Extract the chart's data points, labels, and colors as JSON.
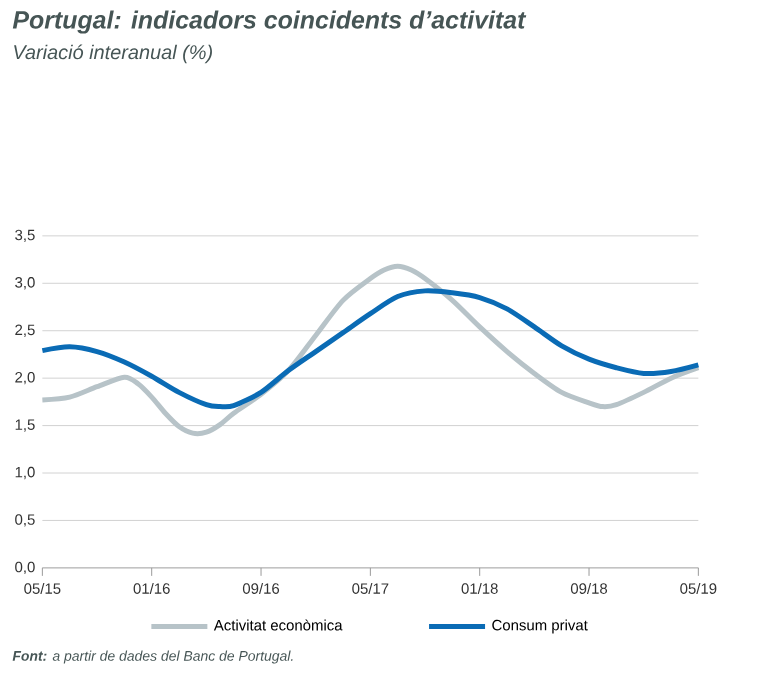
{
  "chart_data": {
    "type": "line",
    "title": "Portugal: indicadors coincidents d’activitat",
    "subtitle": "Variació interanual (%)",
    "annotations": [
      "**Font:** a partir de dades del Banc de Portugal."
    ],
    "x": [
      "2015-05",
      "2015-07",
      "2015-09",
      "2015-11",
      "2015-12",
      "2016-01",
      "2016-02",
      "2016-03",
      "2016-04",
      "2016-05",
      "2016-06",
      "2016-07",
      "2016-09",
      "2016-11",
      "2017-01",
      "2017-03",
      "2017-05",
      "2017-06",
      "2017-07",
      "2017-08",
      "2017-09",
      "2017-11",
      "2018-01",
      "2018-03",
      "2018-05",
      "2018-07",
      "2018-09",
      "2018-10",
      "2018-11",
      "2019-01",
      "2019-03",
      "2019-05"
    ],
    "series": [
      {
        "name": "Activitat econòmica",
        "color": "#b7c3c8",
        "values": [
          1.77,
          1.8,
          1.91,
          2.01,
          1.94,
          1.8,
          1.63,
          1.49,
          1.42,
          1.43,
          1.51,
          1.63,
          1.83,
          2.08,
          2.45,
          2.82,
          3.05,
          3.14,
          3.18,
          3.14,
          3.05,
          2.82,
          2.54,
          2.28,
          2.05,
          1.85,
          1.74,
          1.7,
          1.72,
          1.85,
          2.0,
          2.11
        ]
      },
      {
        "name": "Consum privat",
        "color": "#0a6bb5",
        "x": [
          "2015-05",
          "2015-07",
          "2015-09",
          "2015-11",
          "2016-01",
          "2016-03",
          "2016-05",
          "2016-06",
          "2016-07",
          "2016-09",
          "2016-11",
          "2017-01",
          "2017-03",
          "2017-05",
          "2017-07",
          "2017-09",
          "2017-11",
          "2018-01",
          "2018-03",
          "2018-05",
          "2018-07",
          "2018-09",
          "2018-11",
          "2019-01",
          "2019-03",
          "2019-05"
        ],
        "values": [
          2.29,
          2.33,
          2.28,
          2.17,
          2.02,
          1.85,
          1.72,
          1.7,
          1.71,
          1.85,
          2.08,
          2.28,
          2.48,
          2.68,
          2.86,
          2.92,
          2.9,
          2.85,
          2.73,
          2.54,
          2.34,
          2.2,
          2.11,
          2.05,
          2.07,
          2.14
        ]
      }
    ],
    "xlim": [
      "2015-05",
      "2019-05"
    ],
    "ylim": [
      0,
      3.5
    ],
    "xticks": [
      {
        "value": "2015-05",
        "label": "05/15"
      },
      {
        "value": "2016-01",
        "label": "01/16"
      },
      {
        "value": "2016-09",
        "label": "09/16"
      },
      {
        "value": "2017-05",
        "label": "05/17"
      },
      {
        "value": "2018-01",
        "label": "01/18"
      },
      {
        "value": "2018-09",
        "label": "09/18"
      },
      {
        "value": "2019-05",
        "label": "05/19"
      }
    ],
    "yticks": [
      {
        "value": 0,
        "label": "0,0"
      },
      {
        "value": 0.5,
        "label": "0,5"
      },
      {
        "value": 1,
        "label": "1,0"
      },
      {
        "value": 1.5,
        "label": "1,5"
      },
      {
        "value": 2,
        "label": "2,0"
      },
      {
        "value": 2.5,
        "label": "2,5"
      },
      {
        "value": 3,
        "label": "3,0"
      },
      {
        "value": 3.5,
        "label": "3,5"
      }
    ],
    "grid": "y",
    "legend": "bottom",
    "line_style": "solid",
    "marker": "none"
  }
}
